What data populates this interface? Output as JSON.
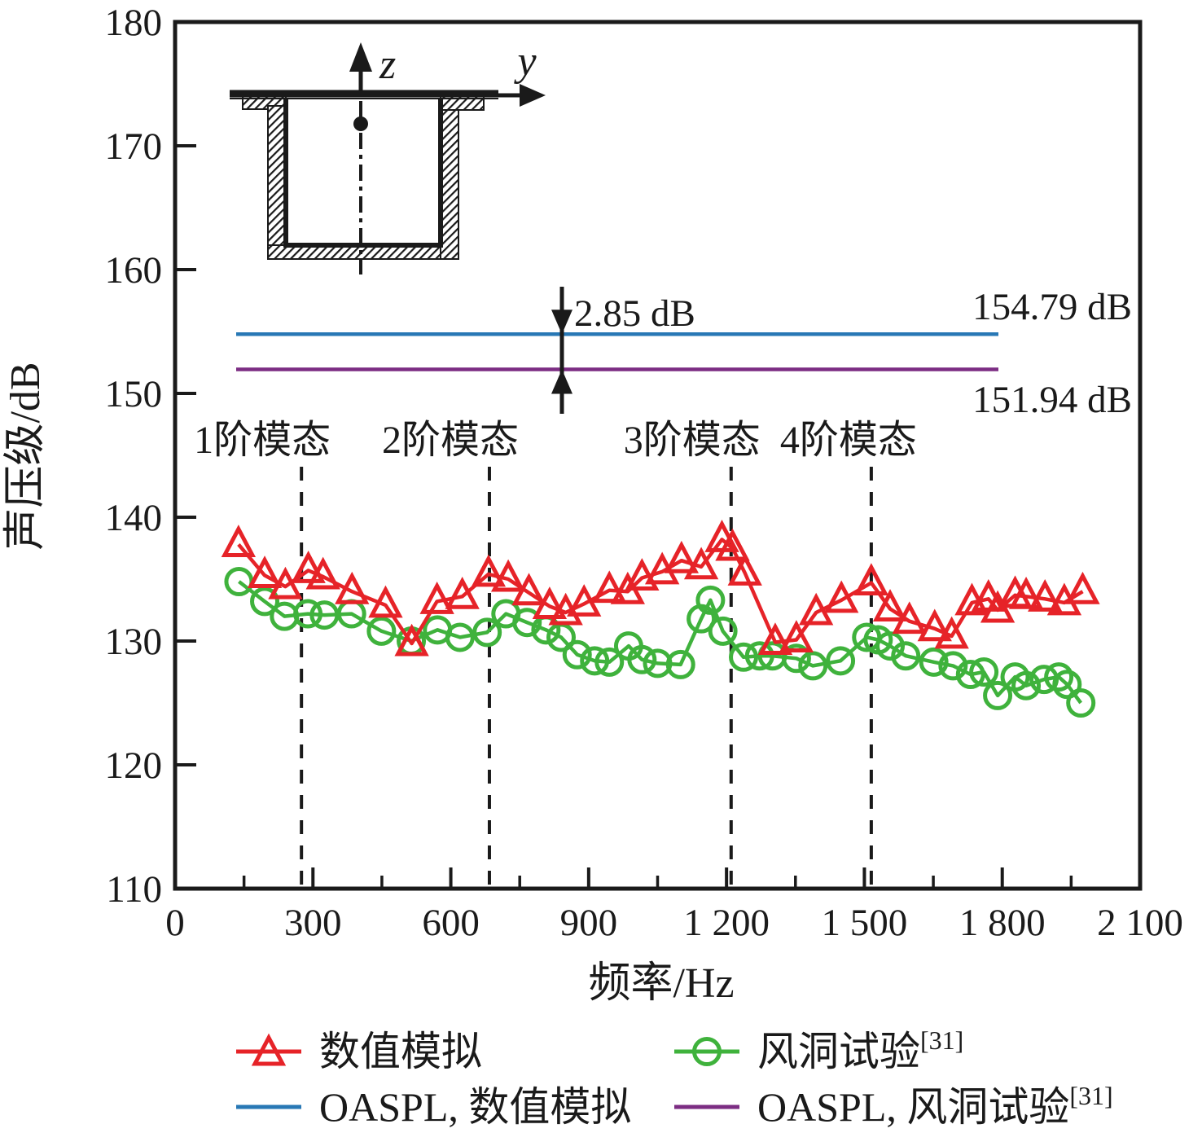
{
  "figure": {
    "x_axis_label": "频率/Hz",
    "y_axis_label": "声压级/dB"
  },
  "inset": {
    "z_axis_label": "z",
    "y_axis_label": "y",
    "description": "cavity-cross-section-with-monitor-point"
  },
  "annotations": {
    "delta_label": "2.85 dB",
    "oaspl_sim_value_label": "154.79 dB",
    "oaspl_exp_value_label": "151.94 dB",
    "mode_labels": [
      "1阶模态",
      "2阶模态",
      "3阶模态",
      "4阶模态"
    ]
  },
  "legend": {
    "items": [
      {
        "label": "数值模拟",
        "sup": "",
        "color": "#e62328",
        "marker": "triangle"
      },
      {
        "label": "风洞试验",
        "sup": "[31]",
        "color": "#3fb23c",
        "marker": "circle"
      },
      {
        "label": "OASPL, 数值模拟",
        "sup": "",
        "color": "#2878b5",
        "marker": "line"
      },
      {
        "label": "OASPL, 风洞试验",
        "sup": "[31]",
        "color": "#7c2d83",
        "marker": "line"
      }
    ]
  },
  "chart_data": {
    "type": "line",
    "title": "",
    "xlabel": "频率/Hz",
    "ylabel": "声压级/dB",
    "xlim": [
      0,
      2100
    ],
    "ylim": [
      110,
      180
    ],
    "grid": false,
    "legend_position": "bottom",
    "x_ticks": [
      0,
      300,
      600,
      900,
      1200,
      1500,
      1800,
      2100
    ],
    "x_tick_labels": [
      "0",
      "300",
      "600",
      "900",
      "1 200",
      "1 500",
      "1 800",
      "2 100"
    ],
    "x_minor_ticks": [
      150,
      450,
      750,
      1050,
      1350,
      1650,
      1950
    ],
    "y_ticks": [
      110,
      120,
      130,
      140,
      150,
      160,
      170,
      180
    ],
    "mode_lines_hz": [
      275,
      684,
      1210,
      1515
    ],
    "delta_db": 2.85,
    "oaspl_lines": [
      {
        "name": "OASPL, 数值模拟",
        "value_db": 154.79,
        "color": "#2878b5"
      },
      {
        "name": "OASPL, 风洞试验[31]",
        "value_db": 151.94,
        "color": "#7c2d83"
      }
    ],
    "series": [
      {
        "name": "数值模拟",
        "color": "#e62328",
        "marker": "triangle",
        "points": [
          [
            138,
            137.8
          ],
          [
            195,
            135.3
          ],
          [
            240,
            134.4
          ],
          [
            290,
            135.7
          ],
          [
            322,
            135.2
          ],
          [
            385,
            134.0
          ],
          [
            458,
            132.9
          ],
          [
            515,
            129.8
          ],
          [
            570,
            133.2
          ],
          [
            625,
            133.6
          ],
          [
            682,
            135.4
          ],
          [
            725,
            135.0
          ],
          [
            770,
            133.9
          ],
          [
            815,
            132.8
          ],
          [
            850,
            132.3
          ],
          [
            890,
            133.0
          ],
          [
            945,
            134.1
          ],
          [
            985,
            134.0
          ],
          [
            1016,
            135.1
          ],
          [
            1060,
            135.6
          ],
          [
            1102,
            136.5
          ],
          [
            1145,
            136.0
          ],
          [
            1190,
            138.2
          ],
          [
            1213,
            137.5
          ],
          [
            1240,
            135.5
          ],
          [
            1306,
            129.9
          ],
          [
            1352,
            130.1
          ],
          [
            1395,
            132.3
          ],
          [
            1450,
            133.3
          ],
          [
            1515,
            134.7
          ],
          [
            1556,
            132.6
          ],
          [
            1598,
            131.6
          ],
          [
            1653,
            131.0
          ],
          [
            1690,
            130.4
          ],
          [
            1734,
            133.1
          ],
          [
            1770,
            133.4
          ],
          [
            1790,
            132.5
          ],
          [
            1828,
            133.7
          ],
          [
            1852,
            133.6
          ],
          [
            1893,
            133.4
          ],
          [
            1935,
            133.1
          ],
          [
            1975,
            134.0
          ]
        ]
      },
      {
        "name": "风洞试验[31]",
        "color": "#3fb23c",
        "marker": "circle",
        "points": [
          [
            139,
            134.8
          ],
          [
            195,
            133.2
          ],
          [
            238,
            132.0
          ],
          [
            289,
            132.2
          ],
          [
            325,
            132.1
          ],
          [
            384,
            132.2
          ],
          [
            449,
            130.8
          ],
          [
            514,
            130.0
          ],
          [
            571,
            130.9
          ],
          [
            620,
            130.3
          ],
          [
            679,
            130.7
          ],
          [
            720,
            132.2
          ],
          [
            766,
            131.5
          ],
          [
            807,
            130.9
          ],
          [
            840,
            130.3
          ],
          [
            875,
            128.9
          ],
          [
            913,
            128.4
          ],
          [
            945,
            128.3
          ],
          [
            987,
            129.6
          ],
          [
            1016,
            128.5
          ],
          [
            1050,
            128.2
          ],
          [
            1100,
            128.1
          ],
          [
            1145,
            131.8
          ],
          [
            1165,
            133.3
          ],
          [
            1192,
            130.8
          ],
          [
            1237,
            128.7
          ],
          [
            1272,
            128.8
          ],
          [
            1300,
            128.8
          ],
          [
            1352,
            128.6
          ],
          [
            1388,
            128.0
          ],
          [
            1448,
            128.4
          ],
          [
            1505,
            130.3
          ],
          [
            1530,
            130.1
          ],
          [
            1556,
            129.6
          ],
          [
            1590,
            128.8
          ],
          [
            1651,
            128.3
          ],
          [
            1693,
            128.0
          ],
          [
            1731,
            127.3
          ],
          [
            1760,
            127.5
          ],
          [
            1790,
            125.6
          ],
          [
            1828,
            127.1
          ],
          [
            1852,
            126.4
          ],
          [
            1891,
            126.9
          ],
          [
            1923,
            127.1
          ],
          [
            1941,
            126.5
          ],
          [
            1971,
            125.0
          ]
        ]
      }
    ]
  }
}
